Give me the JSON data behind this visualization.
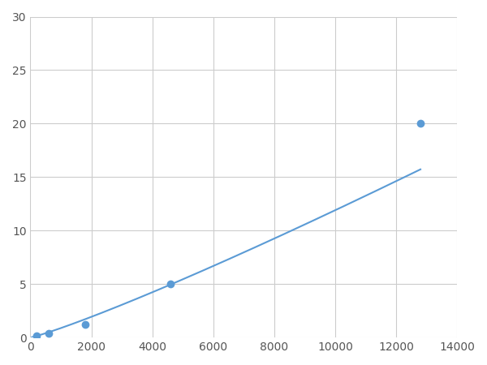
{
  "x_points": [
    200,
    600,
    1800,
    4600,
    12800
  ],
  "y_points": [
    0.2,
    0.4,
    1.2,
    5.0,
    20.0
  ],
  "line_color": "#5b9bd5",
  "marker_color": "#5b9bd5",
  "marker_size": 6,
  "line_width": 1.5,
  "xlim": [
    0,
    14000
  ],
  "ylim": [
    0,
    30
  ],
  "xticks": [
    0,
    2000,
    4000,
    6000,
    8000,
    10000,
    12000,
    14000
  ],
  "yticks": [
    0,
    5,
    10,
    15,
    20,
    25,
    30
  ],
  "grid_color": "#cccccc",
  "background_color": "#ffffff",
  "tick_label_color": "#555555",
  "tick_label_fontsize": 10
}
